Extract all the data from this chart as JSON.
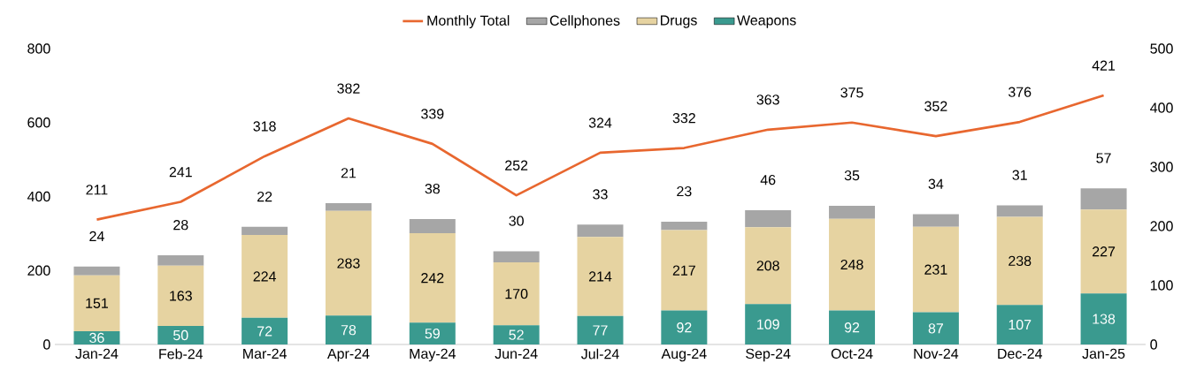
{
  "chart_data": {
    "type": "bar",
    "stacked": true,
    "categories": [
      "Jan-24",
      "Feb-24",
      "Mar-24",
      "Apr-24",
      "May-24",
      "Jun-24",
      "Jul-24",
      "Aug-24",
      "Sep-24",
      "Oct-24",
      "Nov-24",
      "Dec-24",
      "Jan-25"
    ],
    "series": [
      {
        "name": "Weapons",
        "type": "bar",
        "color": "#3a9a8f",
        "values": [
          36,
          50,
          72,
          78,
          59,
          52,
          77,
          92,
          109,
          92,
          87,
          107,
          138
        ]
      },
      {
        "name": "Drugs",
        "type": "bar",
        "color": "#e6d3a1",
        "values": [
          151,
          163,
          224,
          283,
          242,
          170,
          214,
          217,
          208,
          248,
          231,
          238,
          227
        ]
      },
      {
        "name": "Cellphones",
        "type": "bar",
        "color": "#a6a6a6",
        "values": [
          24,
          28,
          22,
          21,
          38,
          30,
          33,
          23,
          46,
          35,
          34,
          31,
          57
        ]
      },
      {
        "name": "Monthly Total",
        "type": "line",
        "axis": "y2",
        "color": "#e8672f",
        "values": [
          211,
          241,
          318,
          382,
          339,
          252,
          324,
          332,
          363,
          375,
          352,
          376,
          421
        ]
      }
    ],
    "ylim": [
      0,
      800
    ],
    "yticks": [
      0,
      200,
      400,
      600,
      800
    ],
    "y2lim": [
      0,
      500
    ],
    "y2ticks": [
      0,
      100,
      200,
      300,
      400,
      500
    ],
    "data_labels": true,
    "legend": "top",
    "grid": false,
    "marker": "none",
    "line_style": "solid"
  }
}
